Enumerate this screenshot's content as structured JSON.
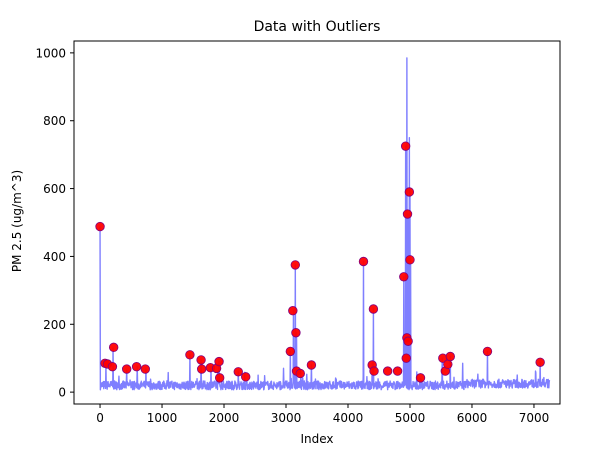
{
  "chart_data": {
    "type": "line",
    "title": "Data with Outliers",
    "xlabel": "Index",
    "ylabel": "PM 2.5 (ug/m^3)",
    "xlim": [
      -420,
      7420
    ],
    "ylim": [
      -35,
      1035
    ],
    "xticks": [
      0,
      1000,
      2000,
      3000,
      4000,
      5000,
      6000,
      7000
    ],
    "yticks": [
      0,
      200,
      400,
      600,
      800,
      1000
    ],
    "grid": false,
    "legend": "none",
    "series": [
      {
        "kind": "line",
        "color": "#0000ff",
        "alpha": 0.5,
        "x_range": [
          0,
          7250
        ],
        "baseline": 15,
        "noise": 20,
        "spikes": [
          {
            "x": 0,
            "y": 488
          },
          {
            "x": 95,
            "y": 85
          },
          {
            "x": 210,
            "y": 130
          },
          {
            "x": 430,
            "y": 65
          },
          {
            "x": 600,
            "y": 75
          },
          {
            "x": 740,
            "y": 68
          },
          {
            "x": 1450,
            "y": 110
          },
          {
            "x": 1630,
            "y": 95
          },
          {
            "x": 1790,
            "y": 75
          },
          {
            "x": 1920,
            "y": 90
          },
          {
            "x": 2230,
            "y": 60
          },
          {
            "x": 2960,
            "y": 70
          },
          {
            "x": 3070,
            "y": 120
          },
          {
            "x": 3120,
            "y": 240
          },
          {
            "x": 3150,
            "y": 375
          },
          {
            "x": 3170,
            "y": 175
          },
          {
            "x": 3410,
            "y": 80
          },
          {
            "x": 4250,
            "y": 385
          },
          {
            "x": 4390,
            "y": 85
          },
          {
            "x": 4410,
            "y": 245
          },
          {
            "x": 4900,
            "y": 340
          },
          {
            "x": 4930,
            "y": 725
          },
          {
            "x": 4950,
            "y": 985
          },
          {
            "x": 4970,
            "y": 525
          },
          {
            "x": 4990,
            "y": 750
          },
          {
            "x": 5000,
            "y": 590
          },
          {
            "x": 5010,
            "y": 390
          },
          {
            "x": 5170,
            "y": 40
          },
          {
            "x": 5520,
            "y": 100
          },
          {
            "x": 5650,
            "y": 105
          },
          {
            "x": 5850,
            "y": 85
          },
          {
            "x": 6250,
            "y": 120
          },
          {
            "x": 7100,
            "y": 88
          }
        ],
        "tail": {
          "x_start": 5900,
          "level": 20
        }
      },
      {
        "kind": "scatter",
        "color": "#ff0000",
        "edgecolor": "#800080",
        "points": [
          {
            "x": 0,
            "y": 488
          },
          {
            "x": 80,
            "y": 85
          },
          {
            "x": 120,
            "y": 83
          },
          {
            "x": 200,
            "y": 75
          },
          {
            "x": 220,
            "y": 132
          },
          {
            "x": 430,
            "y": 68
          },
          {
            "x": 590,
            "y": 75
          },
          {
            "x": 730,
            "y": 68
          },
          {
            "x": 1450,
            "y": 110
          },
          {
            "x": 1630,
            "y": 95
          },
          {
            "x": 1640,
            "y": 68
          },
          {
            "x": 1780,
            "y": 72
          },
          {
            "x": 1880,
            "y": 70
          },
          {
            "x": 1920,
            "y": 90
          },
          {
            "x": 1930,
            "y": 42
          },
          {
            "x": 2230,
            "y": 60
          },
          {
            "x": 2350,
            "y": 45
          },
          {
            "x": 3070,
            "y": 120
          },
          {
            "x": 3110,
            "y": 240
          },
          {
            "x": 3150,
            "y": 375
          },
          {
            "x": 3160,
            "y": 175
          },
          {
            "x": 3170,
            "y": 62
          },
          {
            "x": 3230,
            "y": 55
          },
          {
            "x": 3410,
            "y": 80
          },
          {
            "x": 4250,
            "y": 385
          },
          {
            "x": 4390,
            "y": 80
          },
          {
            "x": 4410,
            "y": 245
          },
          {
            "x": 4420,
            "y": 62
          },
          {
            "x": 4640,
            "y": 62
          },
          {
            "x": 4800,
            "y": 62
          },
          {
            "x": 4900,
            "y": 340
          },
          {
            "x": 4930,
            "y": 725
          },
          {
            "x": 4940,
            "y": 100
          },
          {
            "x": 4950,
            "y": 160
          },
          {
            "x": 4960,
            "y": 525
          },
          {
            "x": 4970,
            "y": 150
          },
          {
            "x": 4990,
            "y": 590
          },
          {
            "x": 5000,
            "y": 390
          },
          {
            "x": 5170,
            "y": 42
          },
          {
            "x": 5530,
            "y": 100
          },
          {
            "x": 5570,
            "y": 62
          },
          {
            "x": 5610,
            "y": 82
          },
          {
            "x": 5650,
            "y": 105
          },
          {
            "x": 6250,
            "y": 120
          },
          {
            "x": 7100,
            "y": 88
          }
        ]
      }
    ]
  }
}
